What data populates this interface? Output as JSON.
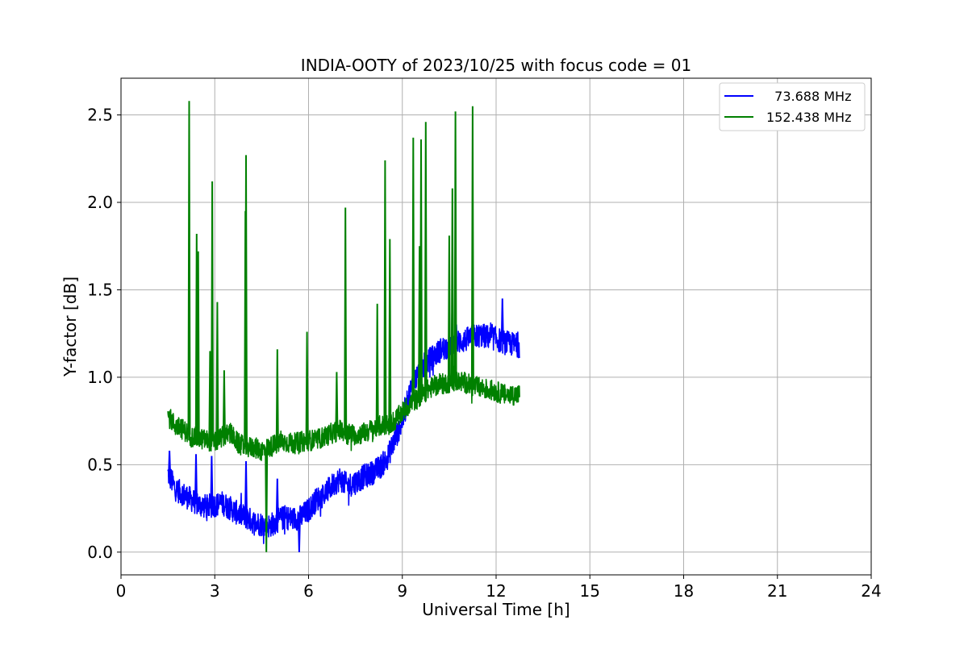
{
  "chart_data": {
    "type": "line",
    "title": "INDIA-OOTY of 2023/10/25 with focus code = 01",
    "xlabel": "Universal Time [h]",
    "ylabel": "Y-factor [dB]",
    "xlim": [
      0,
      24
    ],
    "ylim": [
      -0.13,
      2.71
    ],
    "xticks": [
      0,
      3,
      6,
      9,
      12,
      15,
      18,
      21,
      24
    ],
    "xtick_labels": [
      "0",
      "3",
      "6",
      "9",
      "12",
      "15",
      "18",
      "21",
      "24"
    ],
    "yticks": [
      0.0,
      0.5,
      1.0,
      1.5,
      2.0,
      2.5
    ],
    "ytick_labels": [
      "0.0",
      "0.5",
      "1.0",
      "1.5",
      "2.0",
      "2.5"
    ],
    "grid": true,
    "legend_position": "top-right",
    "series": [
      {
        "name": "  73.688 MHz",
        "color": "#0000ff",
        "x": [
          1.5,
          1.75,
          2.0,
          2.25,
          2.5,
          2.75,
          3.0,
          3.25,
          3.5,
          3.75,
          4.0,
          4.25,
          4.5,
          4.75,
          5.0,
          5.25,
          5.5,
          5.75,
          6.0,
          6.25,
          6.5,
          6.75,
          7.0,
          7.25,
          7.5,
          7.75,
          8.0,
          8.25,
          8.5,
          8.75,
          9.0,
          9.25,
          9.5,
          9.75,
          10.0,
          10.25,
          10.5,
          10.75,
          11.0,
          11.25,
          11.5,
          11.75,
          12.0,
          12.25,
          12.5,
          12.75
        ],
        "y": [
          0.45,
          0.36,
          0.33,
          0.3,
          0.27,
          0.26,
          0.27,
          0.28,
          0.25,
          0.22,
          0.2,
          0.17,
          0.16,
          0.15,
          0.18,
          0.2,
          0.19,
          0.2,
          0.24,
          0.3,
          0.33,
          0.38,
          0.42,
          0.38,
          0.4,
          0.43,
          0.45,
          0.48,
          0.53,
          0.64,
          0.75,
          0.92,
          1.02,
          1.08,
          1.12,
          1.16,
          1.18,
          1.2,
          1.21,
          1.23,
          1.24,
          1.23,
          1.22,
          1.2,
          1.19,
          1.18
        ],
        "spikes": [
          [
            1.55,
            0.58
          ],
          [
            2.4,
            0.56
          ],
          [
            2.9,
            0.55
          ],
          [
            4.0,
            0.52
          ],
          [
            5.0,
            0.42
          ],
          [
            5.7,
            0.0
          ],
          [
            10.6,
            1.45
          ],
          [
            12.2,
            1.45
          ]
        ]
      },
      {
        "name": "152.438 MHz",
        "color": "#008000",
        "x": [
          1.5,
          1.75,
          2.0,
          2.25,
          2.5,
          2.75,
          3.0,
          3.25,
          3.5,
          3.75,
          4.0,
          4.25,
          4.5,
          4.75,
          5.0,
          5.25,
          5.5,
          5.75,
          6.0,
          6.25,
          6.5,
          6.75,
          7.0,
          7.25,
          7.5,
          7.75,
          8.0,
          8.25,
          8.5,
          8.75,
          9.0,
          9.25,
          9.5,
          9.75,
          10.0,
          10.25,
          10.5,
          10.75,
          11.0,
          11.25,
          11.5,
          11.75,
          12.0,
          12.25,
          12.5,
          12.75
        ],
        "y": [
          0.78,
          0.72,
          0.7,
          0.66,
          0.65,
          0.64,
          0.63,
          0.66,
          0.68,
          0.62,
          0.6,
          0.6,
          0.58,
          0.6,
          0.62,
          0.63,
          0.62,
          0.63,
          0.64,
          0.64,
          0.66,
          0.68,
          0.7,
          0.68,
          0.67,
          0.68,
          0.7,
          0.72,
          0.73,
          0.75,
          0.8,
          0.85,
          0.88,
          0.92,
          0.95,
          0.96,
          0.97,
          0.98,
          0.97,
          0.95,
          0.94,
          0.93,
          0.92,
          0.9,
          0.9,
          0.9
        ],
        "spikes": [
          [
            2.18,
            2.58
          ],
          [
            2.42,
            1.82
          ],
          [
            2.47,
            1.72
          ],
          [
            2.85,
            1.15
          ],
          [
            2.92,
            2.12
          ],
          [
            3.08,
            1.43
          ],
          [
            3.3,
            1.04
          ],
          [
            3.98,
            1.95
          ],
          [
            4.0,
            2.27
          ],
          [
            4.65,
            0.0
          ],
          [
            5.0,
            1.16
          ],
          [
            5.95,
            1.26
          ],
          [
            6.9,
            1.03
          ],
          [
            7.18,
            1.97
          ],
          [
            8.2,
            1.42
          ],
          [
            8.45,
            2.24
          ],
          [
            8.6,
            1.79
          ],
          [
            9.35,
            2.37
          ],
          [
            9.55,
            1.75
          ],
          [
            9.6,
            2.36
          ],
          [
            9.75,
            2.46
          ],
          [
            10.5,
            1.81
          ],
          [
            10.6,
            2.08
          ],
          [
            10.7,
            2.52
          ],
          [
            11.25,
            2.55
          ]
        ]
      }
    ]
  }
}
